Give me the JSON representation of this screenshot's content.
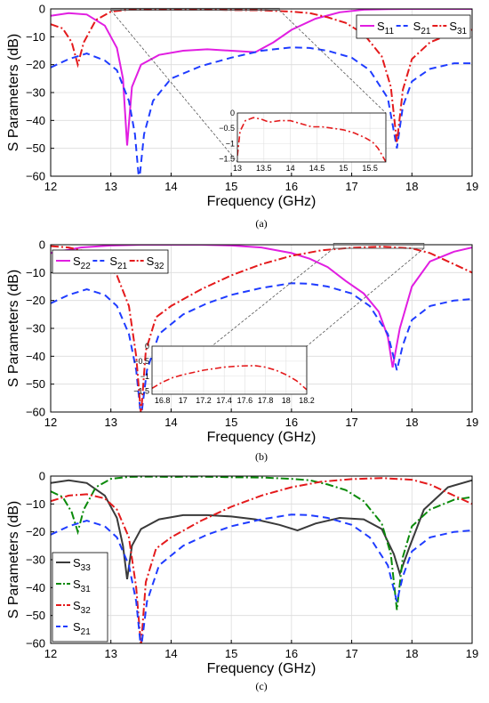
{
  "colors": {
    "magenta": "#e11ee1",
    "blue": "#1f3cff",
    "red": "#e41a1c",
    "green": "#0a8a0a",
    "gray": "#3a3a3a"
  },
  "chart_data": [
    {
      "type": "line",
      "caption": "(a)",
      "xlabel": "Frequency (GHz)",
      "ylabel": "S Parameters (dB)",
      "xlim": [
        12,
        19
      ],
      "ylim": [
        -60,
        0
      ],
      "xticks": [
        "12",
        "13",
        "14",
        "15",
        "16",
        "17",
        "18",
        "19"
      ],
      "yticks": [
        "0",
        "-10",
        "-20",
        "-30",
        "-40",
        "-50",
        "-60"
      ],
      "grid": true,
      "legend": {
        "position": "top-right",
        "entries": [
          {
            "base": "S",
            "sub": "11",
            "style": "solid",
            "color": "#e11ee1"
          },
          {
            "base": "S",
            "sub": "21",
            "style": "dashed",
            "color": "#1f3cff"
          },
          {
            "base": "S",
            "sub": "31",
            "style": "dashdot",
            "color": "#e41a1c"
          }
        ]
      },
      "series": [
        {
          "style": "solid",
          "color": "#e11ee1",
          "x": [
            12,
            12.3,
            12.6,
            12.9,
            13.1,
            13.2,
            13.27,
            13.35,
            13.5,
            13.8,
            14.2,
            14.6,
            15.0,
            15.4,
            15.7,
            16.0,
            16.4,
            16.8,
            17.2,
            17.6,
            18.0,
            18.5,
            19
          ],
          "y": [
            -2.5,
            -1.5,
            -2,
            -6,
            -14,
            -25,
            -49,
            -28,
            -20,
            -16.5,
            -15,
            -14.5,
            -15,
            -15.5,
            -12,
            -7.5,
            -3.5,
            -1.2,
            -0.3,
            -0.1,
            0,
            0,
            0
          ]
        },
        {
          "style": "dashed",
          "color": "#1f3cff",
          "x": [
            12,
            12.3,
            12.6,
            12.9,
            13.1,
            13.3,
            13.4,
            13.47,
            13.55,
            13.7,
            14.0,
            14.5,
            15.0,
            15.5,
            16.0,
            16.3,
            16.6,
            17.0,
            17.3,
            17.6,
            17.75,
            17.85,
            18.0,
            18.3,
            18.7,
            19
          ],
          "y": [
            -21,
            -18,
            -16,
            -18.5,
            -22,
            -33,
            -45,
            -62,
            -45,
            -33,
            -25,
            -20.5,
            -17.5,
            -15,
            -13.8,
            -14,
            -15,
            -17.5,
            -22,
            -32,
            -50,
            -35,
            -26,
            -21.5,
            -19.5,
            -19.5
          ]
        },
        {
          "style": "dashdot",
          "color": "#e41a1c",
          "x": [
            12,
            12.2,
            12.35,
            12.45,
            12.55,
            12.75,
            13.0,
            13.3,
            13.6,
            14.0,
            14.5,
            15.0,
            15.5,
            16.0,
            16.3,
            16.6,
            16.9,
            17.2,
            17.5,
            17.65,
            17.75,
            17.85,
            18.0,
            18.3,
            18.7,
            19
          ],
          "y": [
            -5.5,
            -7,
            -12,
            -20,
            -12,
            -4,
            -1,
            -0.3,
            -0.2,
            -0.3,
            -0.2,
            -0.4,
            -0.5,
            -1,
            -1.5,
            -3,
            -5,
            -9,
            -17,
            -28,
            -48,
            -29,
            -18,
            -12,
            -8.5,
            -7.5
          ]
        }
      ],
      "inset": {
        "xlim": [
          13,
          15.8
        ],
        "ylim": [
          -1.6,
          0
        ],
        "xticks": [
          "13",
          "13.5",
          "14",
          "14.5",
          "15",
          "15.5"
        ],
        "yticks": [
          "0",
          "-0.5",
          "-1",
          "-1.5"
        ],
        "x": [
          13,
          13.05,
          13.15,
          13.3,
          13.45,
          13.6,
          13.8,
          14.0,
          14.2,
          14.4,
          14.6,
          14.8,
          15.0,
          15.2,
          15.4,
          15.55,
          15.65,
          15.72,
          15.8
        ],
        "y": [
          -1.4,
          -0.6,
          -0.25,
          -0.15,
          -0.2,
          -0.3,
          -0.25,
          -0.25,
          -0.35,
          -0.45,
          -0.45,
          -0.5,
          -0.55,
          -0.65,
          -0.8,
          -0.95,
          -1.15,
          -1.35,
          -1.6
        ]
      }
    },
    {
      "type": "line",
      "caption": "(b)",
      "xlabel": "Frequency (GHz)",
      "ylabel": "S Parameters (dB)",
      "xlim": [
        12,
        19
      ],
      "ylim": [
        -60,
        0
      ],
      "xticks": [
        "12",
        "13",
        "14",
        "15",
        "16",
        "17",
        "18",
        "19"
      ],
      "yticks": [
        "0",
        "-10",
        "-20",
        "-30",
        "-40",
        "-50",
        "-60"
      ],
      "grid": true,
      "legend": {
        "position": "top-left",
        "entries": [
          {
            "base": "S",
            "sub": "22",
            "style": "solid",
            "color": "#e11ee1"
          },
          {
            "base": "S",
            "sub": "21",
            "style": "dashed",
            "color": "#1f3cff"
          },
          {
            "base": "S",
            "sub": "32",
            "style": "dashdot",
            "color": "#e41a1c"
          }
        ]
      },
      "series": [
        {
          "style": "solid",
          "color": "#e11ee1",
          "x": [
            12,
            12.5,
            13.0,
            13.5,
            14.0,
            14.5,
            15.0,
            15.5,
            16.0,
            16.3,
            16.6,
            16.9,
            17.2,
            17.45,
            17.6,
            17.68,
            17.8,
            18.0,
            18.3,
            18.7,
            19
          ],
          "y": [
            -3,
            -1,
            -0.3,
            0,
            0,
            0,
            -0.3,
            -1,
            -3,
            -5,
            -8,
            -13,
            -17.5,
            -24,
            -33,
            -44,
            -30,
            -15,
            -6,
            -2.5,
            -1
          ]
        },
        {
          "style": "dashed",
          "color": "#1f3cff",
          "x": [
            12,
            12.3,
            12.6,
            12.9,
            13.1,
            13.3,
            13.42,
            13.5,
            13.6,
            13.8,
            14.2,
            14.6,
            15.0,
            15.5,
            16.0,
            16.3,
            16.6,
            17.0,
            17.3,
            17.6,
            17.75,
            17.85,
            18.0,
            18.3,
            18.7,
            19
          ],
          "y": [
            -21,
            -18,
            -16,
            -18,
            -22,
            -32,
            -45,
            -62,
            -45,
            -32,
            -25,
            -21,
            -18,
            -15.5,
            -13.8,
            -14,
            -15,
            -17.5,
            -22,
            -32,
            -45,
            -36,
            -27,
            -22,
            -20,
            -19.5
          ]
        },
        {
          "style": "dashdot",
          "color": "#e41a1c",
          "x": [
            12,
            12.3,
            12.6,
            12.9,
            13.1,
            13.3,
            13.42,
            13.5,
            13.58,
            13.75,
            14.0,
            14.5,
            15.0,
            15.5,
            16.0,
            16.5,
            17.0,
            17.5,
            18.0,
            18.3,
            18.6,
            19
          ],
          "y": [
            -0.5,
            -1,
            -2.5,
            -6,
            -11,
            -22,
            -40,
            -61,
            -38,
            -26,
            -22,
            -16,
            -11,
            -7,
            -4,
            -2,
            -1.1,
            -0.7,
            -1.3,
            -3,
            -6,
            -10
          ]
        }
      ],
      "inset": {
        "xlim": [
          16.7,
          18.2
        ],
        "ylim": [
          -1.6,
          0
        ],
        "xticks": [
          "16.8",
          "17",
          "17.2",
          "17.4",
          "17.6",
          "17.8",
          "18",
          "18.2"
        ],
        "yticks": [
          "0",
          "-0.5",
          "-1",
          "-1.5"
        ],
        "x": [
          16.7,
          16.8,
          16.9,
          17.0,
          17.2,
          17.4,
          17.55,
          17.7,
          17.8,
          17.9,
          18.0,
          18.1,
          18.2
        ],
        "y": [
          -1.4,
          -1.2,
          -1.05,
          -0.95,
          -0.8,
          -0.7,
          -0.66,
          -0.65,
          -0.7,
          -0.8,
          -0.95,
          -1.15,
          -1.45
        ]
      }
    },
    {
      "type": "line",
      "caption": "(c)",
      "xlabel": "Frequency (GHz)",
      "ylabel": "S Parameters (dB)",
      "xlim": [
        12,
        19
      ],
      "ylim": [
        -60,
        0
      ],
      "xticks": [
        "12",
        "13",
        "14",
        "15",
        "16",
        "17",
        "18",
        "19"
      ],
      "yticks": [
        "0",
        "-10",
        "-20",
        "-30",
        "-40",
        "-50",
        "-60"
      ],
      "grid": true,
      "legend": {
        "position": "center-left",
        "entries": [
          {
            "base": "S",
            "sub": "33",
            "style": "solid",
            "color": "#3a3a3a"
          },
          {
            "base": "S",
            "sub": "31",
            "style": "dashdot",
            "color": "#0a8a0a"
          },
          {
            "base": "S",
            "sub": "32",
            "style": "dashdot",
            "color": "#e41a1c"
          },
          {
            "base": "S",
            "sub": "21",
            "style": "dashed",
            "color": "#1f3cff"
          }
        ]
      },
      "series": [
        {
          "style": "solid",
          "color": "#3a3a3a",
          "x": [
            12,
            12.3,
            12.6,
            12.9,
            13.1,
            13.2,
            13.27,
            13.35,
            13.5,
            13.8,
            14.2,
            14.6,
            15.0,
            15.4,
            15.8,
            16.1,
            16.4,
            16.8,
            17.2,
            17.5,
            17.7,
            17.8,
            17.95,
            18.2,
            18.6,
            19
          ],
          "y": [
            -2.5,
            -1.5,
            -2.5,
            -7,
            -15,
            -25,
            -37,
            -25,
            -19,
            -15.5,
            -14,
            -14,
            -14.5,
            -15.5,
            -17.5,
            -19.5,
            -17,
            -15,
            -15.5,
            -19,
            -28,
            -35,
            -26,
            -12,
            -4,
            -1.5
          ]
        },
        {
          "style": "dashdot",
          "color": "#0a8a0a",
          "x": [
            12,
            12.2,
            12.35,
            12.45,
            12.55,
            12.75,
            13.0,
            13.3,
            13.6,
            14.0,
            14.5,
            15.0,
            15.5,
            16.0,
            16.3,
            16.6,
            16.9,
            17.2,
            17.5,
            17.65,
            17.75,
            17.85,
            18.0,
            18.3,
            18.7,
            19
          ],
          "y": [
            -5.5,
            -7.5,
            -13,
            -20,
            -12,
            -4,
            -1,
            -0.3,
            -0.2,
            -0.3,
            -0.2,
            -0.4,
            -0.5,
            -1,
            -1.5,
            -3,
            -5,
            -9,
            -17,
            -28,
            -48,
            -29,
            -18,
            -12,
            -8.5,
            -7.5
          ]
        },
        {
          "style": "dashdot",
          "color": "#e41a1c",
          "x": [
            12,
            12.3,
            12.6,
            12.9,
            13.1,
            13.3,
            13.42,
            13.5,
            13.58,
            13.75,
            14.0,
            14.5,
            15.0,
            15.5,
            16.0,
            16.5,
            17.0,
            17.5,
            18.0,
            18.3,
            18.6,
            19
          ],
          "y": [
            -9,
            -7,
            -6.5,
            -8,
            -12,
            -22,
            -40,
            -61,
            -38,
            -26,
            -22,
            -16,
            -11,
            -7,
            -4,
            -2,
            -1.1,
            -0.7,
            -1.3,
            -3,
            -6,
            -10
          ]
        },
        {
          "style": "dashed",
          "color": "#1f3cff",
          "x": [
            12,
            12.3,
            12.6,
            12.9,
            13.1,
            13.3,
            13.42,
            13.5,
            13.6,
            13.8,
            14.2,
            14.6,
            15.0,
            15.5,
            16.0,
            16.3,
            16.6,
            17.0,
            17.3,
            17.6,
            17.75,
            17.85,
            18.0,
            18.3,
            18.7,
            19
          ],
          "y": [
            -21,
            -18,
            -16,
            -18,
            -22,
            -32,
            -45,
            -62,
            -45,
            -32,
            -25,
            -21,
            -18,
            -15.5,
            -13.8,
            -14,
            -15,
            -17.5,
            -22,
            -32,
            -45,
            -36,
            -27,
            -22,
            -20,
            -19.5
          ]
        }
      ]
    }
  ]
}
